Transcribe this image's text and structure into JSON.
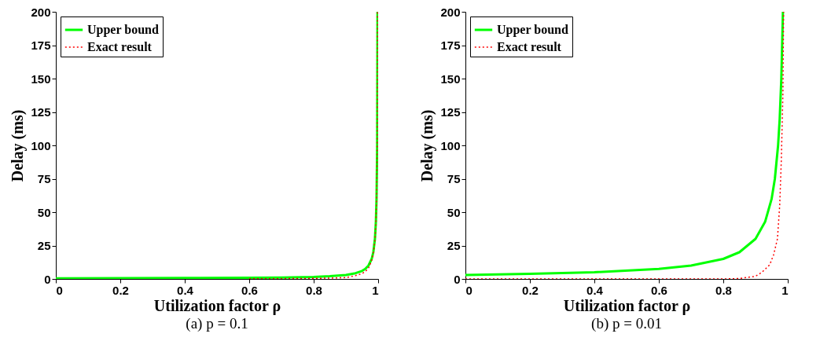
{
  "chart_data": [
    {
      "type": "line",
      "title": "(a) p = 0.1",
      "xlabel": "Utilization factor ρ",
      "ylabel": "Delay (ms)",
      "xlim": [
        0,
        1
      ],
      "ylim": [
        0,
        200
      ],
      "xticks": [
        0,
        0.2,
        0.4,
        0.6,
        0.8,
        1
      ],
      "yticks": [
        0,
        25,
        50,
        75,
        100,
        125,
        150,
        175,
        200
      ],
      "legend": "top left",
      "grid": false,
      "series": [
        {
          "name": "Upper bound",
          "color": "#00ff00",
          "line_style": "solid",
          "x": [
            0,
            0.2,
            0.4,
            0.6,
            0.7,
            0.8,
            0.85,
            0.9,
            0.93,
            0.95,
            0.96,
            0.97,
            0.98,
            0.985,
            0.99,
            0.993,
            0.995,
            0.997,
            0.998
          ],
          "values": [
            0.5,
            0.6,
            0.7,
            0.9,
            1.1,
            1.5,
            2,
            3,
            4.3,
            6,
            7.5,
            10,
            15,
            20,
            30,
            43,
            60,
            100,
            200
          ]
        },
        {
          "name": "Exact result",
          "color": "#ff0000",
          "line_style": "dotted",
          "x": [
            0.6,
            0.7,
            0.8,
            0.85,
            0.9,
            0.93,
            0.95,
            0.96,
            0.97,
            0.98,
            0.985,
            0.99,
            0.993,
            0.995,
            0.997,
            0.998
          ],
          "values": [
            0.1,
            0.2,
            0.4,
            0.6,
            1,
            2.5,
            4,
            5.5,
            8,
            14,
            19,
            29,
            42,
            59,
            99,
            200
          ]
        }
      ]
    },
    {
      "type": "line",
      "title": "(b) p = 0.01",
      "xlabel": "Utilization factor ρ",
      "ylabel": "Delay (ms)",
      "xlim": [
        0,
        1
      ],
      "ylim": [
        0,
        200
      ],
      "xticks": [
        0,
        0.2,
        0.4,
        0.6,
        0.8,
        1
      ],
      "yticks": [
        0,
        25,
        50,
        75,
        100,
        125,
        150,
        175,
        200
      ],
      "legend": "top left",
      "grid": false,
      "series": [
        {
          "name": "Upper bound",
          "color": "#00ff00",
          "line_style": "solid",
          "x": [
            0,
            0.2,
            0.4,
            0.6,
            0.7,
            0.8,
            0.85,
            0.9,
            0.93,
            0.95,
            0.96,
            0.97,
            0.975,
            0.98,
            0.985
          ],
          "values": [
            3,
            3.8,
            5,
            7.5,
            10,
            15,
            20,
            30,
            43,
            60,
            75,
            100,
            120,
            150,
            200
          ]
        },
        {
          "name": "Exact result",
          "color": "#ff0000",
          "line_style": "dotted",
          "x": [
            0,
            0.8,
            0.85,
            0.9,
            0.92,
            0.944,
            0.956,
            0.968,
            0.975,
            0.98,
            0.985,
            0.987
          ],
          "values": [
            0,
            0,
            0.3,
            2,
            5,
            10.6,
            18,
            30,
            55,
            89,
            140,
            200
          ]
        }
      ]
    }
  ]
}
